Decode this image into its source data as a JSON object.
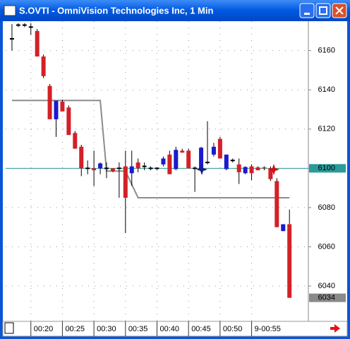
{
  "window": {
    "title": "S.OVTI - OmniVision Technologies Inc, 1 Min"
  },
  "chart_data": {
    "type": "candlestick",
    "x": [
      17,
      18,
      19,
      20,
      21,
      22,
      23,
      24,
      25,
      26,
      27,
      28,
      29,
      30,
      31,
      32,
      33,
      34,
      35,
      36,
      37,
      38,
      39,
      40,
      41,
      42,
      43,
      44,
      45,
      46,
      47,
      48,
      49,
      50,
      51,
      52,
      53,
      54,
      55,
      56,
      57,
      58,
      59,
      60,
      61
    ],
    "open": [
      6166,
      6173,
      6173,
      6172,
      6170,
      6157,
      6142,
      6125,
      6134,
      6131,
      6118,
      6111,
      6100,
      6100,
      6100,
      6100,
      6100,
      6100,
      6101,
      6097.5,
      6103,
      6101,
      6100,
      6100,
      6102,
      6107,
      6099.6,
      6109,
      6109,
      6100,
      6099.6,
      6103,
      6107,
      6115,
      6099.6,
      6104,
      6102,
      6097.5,
      6101,
      6100.5,
      6100.5,
      6100,
      6093.5,
      6068,
      6071.5
    ],
    "high": [
      6173.5,
      6174,
      6174,
      6174,
      6171,
      6158,
      6143,
      6134.5,
      6135,
      6132,
      6119,
      6112,
      6104,
      6109,
      6103,
      6103,
      6100,
      6103,
      6109,
      6109,
      6105,
      6103,
      6101,
      6100.5,
      6106,
      6109,
      6111,
      6110,
      6110,
      6101,
      6111,
      6124,
      6113,
      6116,
      6107,
      6105,
      6105,
      6101,
      6102,
      6101,
      6101,
      6101,
      6095,
      6071.5,
      6079
    ],
    "low": [
      6160,
      6172,
      6172,
      6168,
      6157,
      6146,
      6125,
      6116,
      6129,
      6117,
      6110,
      6096,
      6097,
      6091,
      6097,
      6095,
      6098,
      6085,
      6067,
      6091,
      6098,
      6099,
      6099,
      6099,
      6101,
      6097,
      6099,
      6108,
      6100,
      6088,
      6099,
      6102,
      6106,
      6105,
      6099,
      6103,
      6092,
      6097,
      6094,
      6099,
      6099,
      6093.5,
      6070,
      6068,
      6034
    ],
    "close": [
      6166,
      6173,
      6173,
      6172,
      6157,
      6147,
      6125,
      6134.5,
      6129,
      6117,
      6110,
      6100,
      6100,
      6099,
      6102.5,
      6100,
      6098.5,
      6100,
      6085,
      6101,
      6100,
      6101,
      6100,
      6100,
      6105,
      6097,
      6109.4,
      6108,
      6100,
      6100,
      6110.5,
      6103,
      6111,
      6105,
      6107,
      6104,
      6098,
      6100.7,
      6097.5,
      6099,
      6100,
      6094.5,
      6070,
      6071.5,
      6034
    ],
    "up_color": "#1a1ad0",
    "down_color": "#d42027",
    "doji_color": "#000000",
    "line": {
      "color": "#8c8c8c",
      "x": [
        17,
        31,
        32,
        35,
        37,
        61
      ],
      "values": [
        6134.6,
        6134.6,
        6098.6,
        6098.6,
        6085,
        6085
      ]
    },
    "price_line": 6100,
    "price_line_color": "#2a9a9a",
    "last_price": 6034,
    "xlim": [
      16,
      64
    ],
    "xticks": [
      {
        "value": 20,
        "label": "00:20"
      },
      {
        "value": 25,
        "label": "00:25"
      },
      {
        "value": 30,
        "label": "00:30"
      },
      {
        "value": 35,
        "label": "00:35"
      },
      {
        "value": 40,
        "label": "00:40"
      },
      {
        "value": 45,
        "label": "00:45"
      },
      {
        "value": 50,
        "label": "00:50"
      },
      {
        "value": 55,
        "label": "9-00:55"
      }
    ],
    "ylim": [
      6022,
      6175
    ],
    "yticks": [
      6040,
      6060,
      6080,
      6100,
      6120,
      6140,
      6160
    ],
    "grid": true
  }
}
